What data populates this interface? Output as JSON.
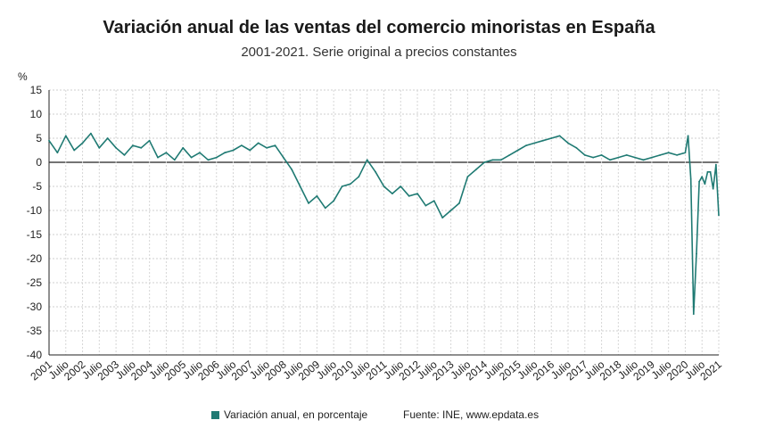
{
  "chart_data": {
    "type": "line",
    "title": "Variación anual de las ventas del comercio minoristas en España",
    "subtitle": "2001-2021. Serie original a precios constantes",
    "ylabel": "%",
    "ylim": [
      -40,
      15
    ],
    "yticks": [
      15,
      10,
      5,
      0,
      -5,
      -10,
      -15,
      -20,
      -25,
      -30,
      -35,
      -40
    ],
    "grid": true,
    "x_start": "2001-01",
    "x_end": "2021-01",
    "x_tick_labels": [
      "2001",
      "Julio",
      "2002",
      "Julio",
      "2003",
      "Julio",
      "2004",
      "Julio",
      "2005",
      "Julio",
      "2006",
      "Julio",
      "2007",
      "Julio",
      "2008",
      "Julio",
      "2009",
      "Julio",
      "2010",
      "Julio",
      "2011",
      "Julio",
      "2012",
      "Julio",
      "2013",
      "Julio",
      "2014",
      "Julio",
      "2015",
      "Julio",
      "2016",
      "Julio",
      "2017",
      "Julio",
      "2018",
      "Julio",
      "2019",
      "Julio",
      "2020",
      "Julio",
      "2021"
    ],
    "series": [
      {
        "name": "Variación anual, en porcentaje",
        "color": "#1f7a73",
        "x": [
          "2001-01",
          "2001-04",
          "2001-07",
          "2001-10",
          "2002-01",
          "2002-04",
          "2002-07",
          "2002-10",
          "2003-01",
          "2003-04",
          "2003-07",
          "2003-10",
          "2004-01",
          "2004-04",
          "2004-07",
          "2004-10",
          "2005-01",
          "2005-04",
          "2005-07",
          "2005-10",
          "2006-01",
          "2006-04",
          "2006-07",
          "2006-10",
          "2007-01",
          "2007-04",
          "2007-07",
          "2007-10",
          "2008-01",
          "2008-04",
          "2008-07",
          "2008-10",
          "2009-01",
          "2009-04",
          "2009-07",
          "2009-10",
          "2010-01",
          "2010-04",
          "2010-07",
          "2010-10",
          "2011-01",
          "2011-04",
          "2011-07",
          "2011-10",
          "2012-01",
          "2012-04",
          "2012-07",
          "2012-10",
          "2013-01",
          "2013-04",
          "2013-07",
          "2013-10",
          "2014-01",
          "2014-04",
          "2014-07",
          "2014-10",
          "2015-01",
          "2015-04",
          "2015-07",
          "2015-10",
          "2016-01",
          "2016-04",
          "2016-07",
          "2016-10",
          "2017-01",
          "2017-04",
          "2017-07",
          "2017-10",
          "2018-01",
          "2018-04",
          "2018-07",
          "2018-10",
          "2019-01",
          "2019-04",
          "2019-07",
          "2019-10",
          "2020-01",
          "2020-02",
          "2020-03",
          "2020-04",
          "2020-05",
          "2020-06",
          "2020-07",
          "2020-08",
          "2020-09",
          "2020-10",
          "2020-11",
          "2020-12",
          "2021-01"
        ],
        "values": [
          4.5,
          2.0,
          5.5,
          2.5,
          4.0,
          6.0,
          3.0,
          5.0,
          3.0,
          1.5,
          3.5,
          3.0,
          4.5,
          1.0,
          2.0,
          0.5,
          3.0,
          1.0,
          2.0,
          0.5,
          1.0,
          2.0,
          2.5,
          3.5,
          2.5,
          4.0,
          3.0,
          3.5,
          1.0,
          -1.5,
          -5.0,
          -8.5,
          -7.0,
          -9.5,
          -8.0,
          -5.0,
          -4.5,
          -3.0,
          0.5,
          -2.0,
          -5.0,
          -6.5,
          -5.0,
          -7.0,
          -6.5,
          -9.0,
          -8.0,
          -11.5,
          -10.0,
          -8.5,
          -3.0,
          -1.5,
          0.0,
          0.5,
          0.5,
          1.5,
          2.5,
          3.5,
          4.0,
          4.5,
          5.0,
          5.5,
          4.0,
          3.0,
          1.5,
          1.0,
          1.5,
          0.5,
          1.0,
          1.5,
          1.0,
          0.5,
          1.0,
          1.5,
          2.0,
          1.5,
          2.0,
          5.5,
          -3.5,
          -31.5,
          -19.0,
          -4.0,
          -3.0,
          -4.5,
          -2.0,
          -2.0,
          -5.5,
          -0.5,
          -11.0
        ]
      }
    ],
    "legend_position": "bottom"
  },
  "legend": {
    "series_label": "Variación anual, en porcentaje",
    "source": "Fuente: INE, www.epdata.es"
  }
}
